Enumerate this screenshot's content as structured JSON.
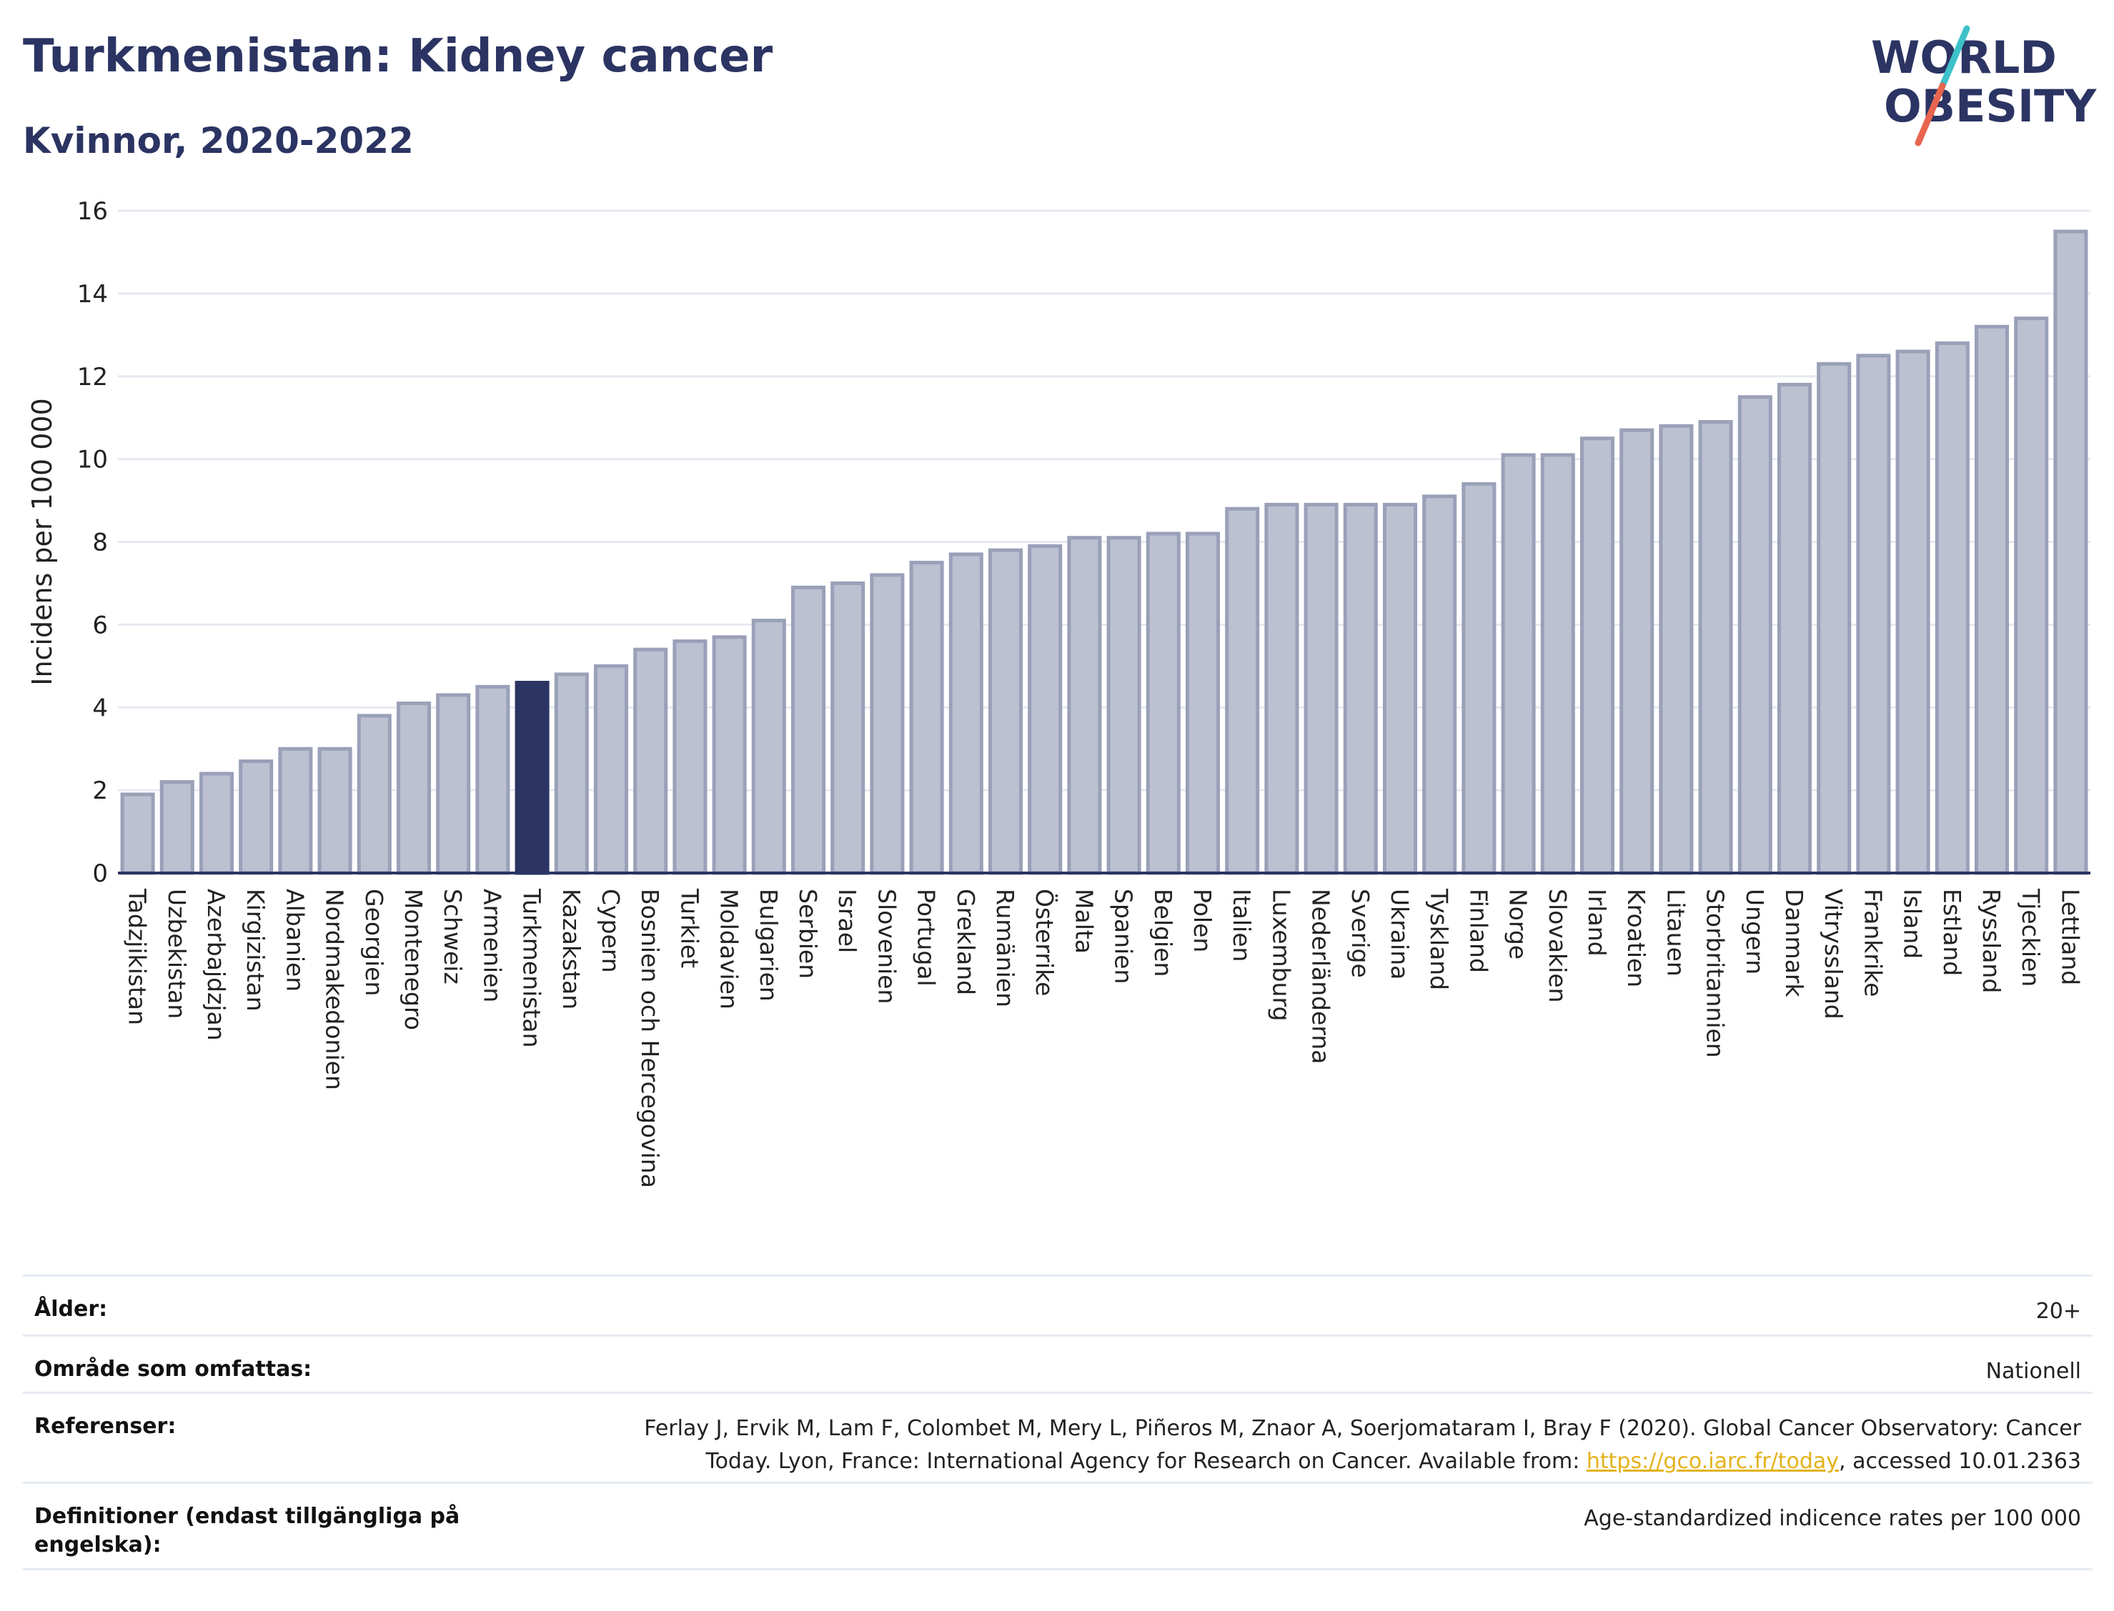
{
  "header": {
    "title": "Turkmenistan: Kidney cancer",
    "subtitle": "Kvinnor, 2020-2022"
  },
  "logo": {
    "line1": "WORLD",
    "line2": "OBESITY",
    "slash_colors": [
      "#3fc1c9",
      "#e8654f"
    ],
    "text_color": "#2b3462"
  },
  "colors": {
    "bar": "#bcc0d0",
    "bar_stroke": "#9aa0b8",
    "highlight": "#2b3462",
    "grid": "#e6e9f0",
    "axis": "#2b3462"
  },
  "chart_data": {
    "type": "bar",
    "ylabel": "Incidens per 100 000",
    "xlabel": "",
    "ylim": [
      0,
      16
    ],
    "yticks": [
      0,
      2,
      4,
      6,
      8,
      10,
      12,
      14,
      16
    ],
    "grid": true,
    "highlight": "Turkmenistan",
    "categories": [
      "Tadzjikistan",
      "Uzbekistan",
      "Azerbajdzjan",
      "Kirgizistan",
      "Albanien",
      "Nordmakedonien",
      "Georgien",
      "Montenegro",
      "Schweiz",
      "Armenien",
      "Turkmenistan",
      "Kazakstan",
      "Cypern",
      "Bosnien och Hercegovina",
      "Turkiet",
      "Moldavien",
      "Bulgarien",
      "Serbien",
      "Israel",
      "Slovenien",
      "Portugal",
      "Grekland",
      "Rumänien",
      "Österrike",
      "Malta",
      "Spanien",
      "Belgien",
      "Polen",
      "Italien",
      "Luxemburg",
      "Nederländerna",
      "Sverige",
      "Ukraina",
      "Tyskland",
      "Finland",
      "Norge",
      "Slovakien",
      "Irland",
      "Kroatien",
      "Litauen",
      "Storbritannien",
      "Ungern",
      "Danmark",
      "Vitryssland",
      "Frankrike",
      "Island",
      "Estland",
      "Ryssland",
      "Tjeckien",
      "Lettland"
    ],
    "values": [
      1.9,
      2.2,
      2.4,
      2.7,
      3.0,
      3.0,
      3.8,
      4.1,
      4.3,
      4.5,
      4.6,
      4.8,
      5.0,
      5.4,
      5.6,
      5.7,
      6.1,
      6.9,
      7.0,
      7.2,
      7.5,
      7.7,
      7.8,
      7.9,
      8.1,
      8.1,
      8.2,
      8.2,
      8.8,
      8.9,
      8.9,
      8.9,
      8.9,
      9.1,
      9.4,
      10.1,
      10.1,
      10.5,
      10.7,
      10.8,
      10.9,
      11.5,
      11.8,
      12.3,
      12.5,
      12.6,
      12.8,
      13.2,
      13.4,
      15.5
    ]
  },
  "info": {
    "age_label": "Ålder:",
    "age_value": "20+",
    "area_label": "Område som omfattas:",
    "area_value": "Nationell",
    "ref_label": "Referenser:",
    "ref_text_1": "Ferlay J, Ervik M, Lam F, Colombet M, Mery L, Piñeros M, Znaor A, Soerjomataram I, Bray F (2020). Global Cancer Observatory: Cancer Today. Lyon, France: International Agency for Research on Cancer. Available from: ",
    "ref_link": "https://gco.iarc.fr/today",
    "ref_text_2": ", accessed 10.01.2363",
    "def_label": "Definitioner (endast tillgängliga på engelska):",
    "def_value": "Age-standardized indicence rates per 100 000"
  }
}
